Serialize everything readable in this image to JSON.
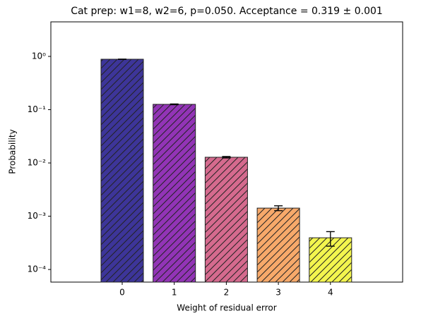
{
  "chart_data": {
    "type": "bar",
    "title": "Cat prep: w1=8, w2=6, p=0.050. Acceptance = 0.319 ± 0.001",
    "x_label": "Weight of residual error",
    "y_label": "Probability",
    "categories": [
      "0",
      "1",
      "2",
      "3",
      "4"
    ],
    "values": [
      0.885,
      0.126,
      0.0128,
      0.00142,
      0.000394
    ],
    "errors": [
      0.005,
      0.002,
      0.0004,
      0.00015,
      0.00012
    ],
    "colors": [
      "#3d3599",
      "#9234b6",
      "#d56a8e",
      "#f7a96a",
      "#f3f54e"
    ],
    "hatch": "/",
    "log_y": true,
    "ylim": [
      5.8e-05,
      4.45
    ],
    "yticks": [
      {
        "value": 0.0001,
        "label": "10⁻⁴"
      },
      {
        "value": 0.001,
        "label": "10⁻³"
      },
      {
        "value": 0.01,
        "label": "10⁻²"
      },
      {
        "value": 0.1,
        "label": "10⁻¹"
      },
      {
        "value": 1,
        "label": "10⁰"
      }
    ]
  }
}
